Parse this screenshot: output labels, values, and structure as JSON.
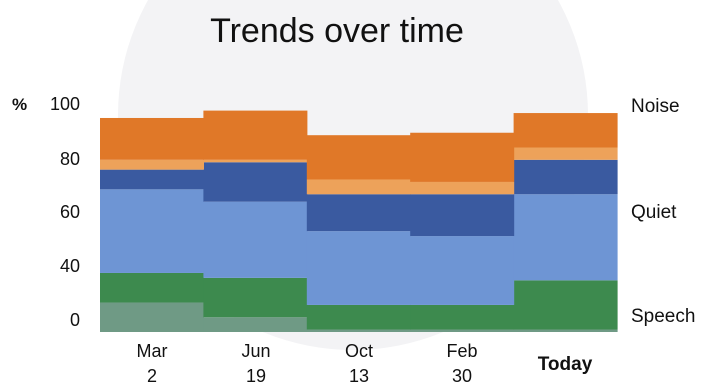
{
  "chart_data": {
    "type": "area",
    "title": "Trends over time",
    "ylabel": "%",
    "y_ticks": [
      "0",
      "40",
      "60",
      "80",
      "100"
    ],
    "categories": [
      [
        "Mar",
        "2"
      ],
      [
        "Jun",
        "19"
      ],
      [
        "Oct",
        "13"
      ],
      [
        "Feb",
        "30"
      ],
      [
        "Today"
      ]
    ],
    "grid": false,
    "legend_position": "right",
    "legend": [
      "Noise",
      "Quiet",
      "Speech"
    ],
    "series": [
      {
        "color": "#6f9a85",
        "values": [
          12,
          6,
          1,
          1,
          1
        ]
      },
      {
        "color": "#3d8a4e",
        "values": [
          12,
          16,
          10,
          10,
          20
        ]
      },
      {
        "color": "#6e95d4",
        "values": [
          34,
          31,
          30,
          28,
          35
        ]
      },
      {
        "color": "#3a5aa0",
        "values": [
          8,
          16,
          15,
          17,
          14
        ]
      },
      {
        "color": "#eda25a",
        "values": [
          4,
          1,
          6,
          5,
          5
        ]
      },
      {
        "color": "#e07828",
        "values": [
          17,
          20,
          18,
          20,
          14
        ]
      }
    ],
    "colors": {
      "speech_light": "#6f9a85",
      "speech": "#3d8a4e",
      "quiet_light": "#6e95d4",
      "quiet": "#3a5aa0",
      "noise_light": "#eda25a",
      "noise": "#e07828"
    }
  }
}
